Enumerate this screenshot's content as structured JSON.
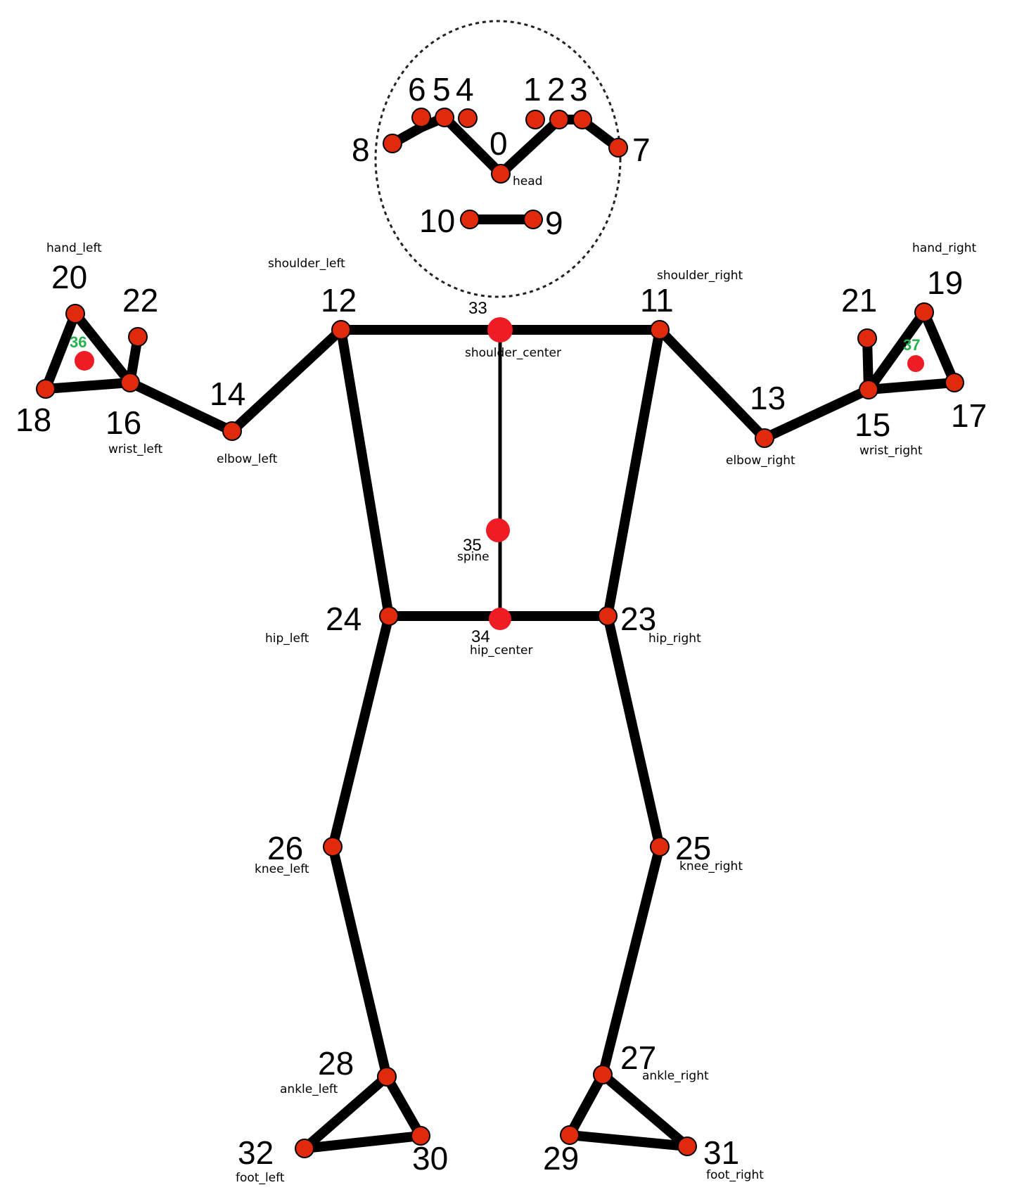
{
  "diagram": {
    "colors": {
      "joint_fill": "#e02a0c",
      "extra_point": "#ee1c25",
      "bone": "#000000",
      "green_label": "#22b14c"
    },
    "landmark_numbers": {
      "n0": "0",
      "n1": "1",
      "n2": "2",
      "n3": "3",
      "n4": "4",
      "n5": "5",
      "n6": "6",
      "n7": "7",
      "n8": "8",
      "n9": "9",
      "n10": "10",
      "n11": "11",
      "n12": "12",
      "n13": "13",
      "n14": "14",
      "n15": "15",
      "n16": "16",
      "n17": "17",
      "n18": "18",
      "n19": "19",
      "n20": "20",
      "n21": "21",
      "n22": "22",
      "n23": "23",
      "n24": "24",
      "n25": "25",
      "n26": "26",
      "n27": "27",
      "n28": "28",
      "n29": "29",
      "n30": "30",
      "n31": "31",
      "n32": "32"
    },
    "extra_numbers": {
      "n33": "33",
      "n34": "34",
      "n35": "35",
      "n36": "36",
      "n37": "37"
    },
    "names": {
      "head": "head",
      "hand_left": "hand_left",
      "hand_right": "hand_right",
      "shoulder_left": "shoulder_left",
      "shoulder_right": "shoulder_right",
      "shoulder_center": "shoulder_center",
      "wrist_left": "wrist_left",
      "wrist_right": "wrist_right",
      "elbow_left": "elbow_left",
      "elbow_right": "elbow_right",
      "spine": "spine",
      "hip_left": "hip_left",
      "hip_right": "hip_right",
      "hip_center": "hip_center",
      "knee_left": "knee_left",
      "knee_right": "knee_right",
      "ankle_left": "ankle_left",
      "ankle_right": "ankle_right",
      "foot_left": "foot_left",
      "foot_right": "foot_right"
    }
  }
}
